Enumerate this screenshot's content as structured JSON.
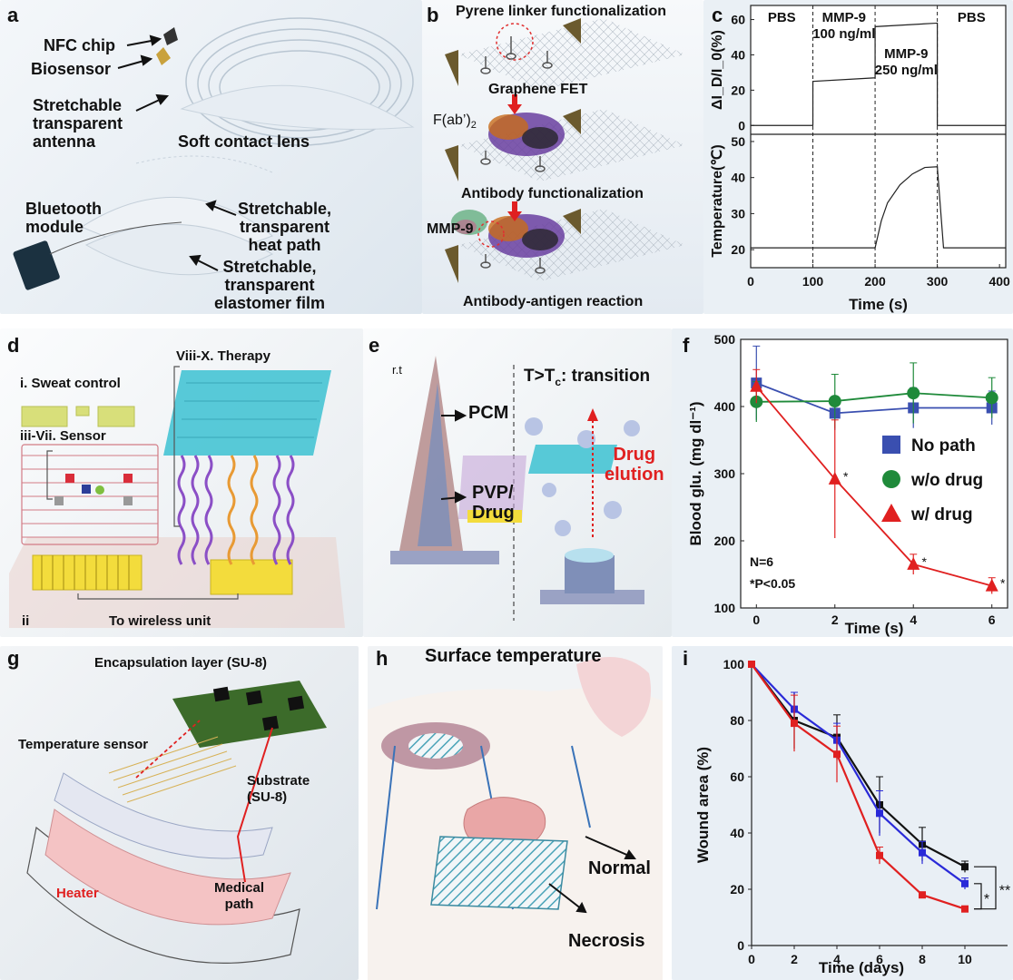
{
  "panel_labels": {
    "a": "a",
    "b": "b",
    "c": "c",
    "d": "d",
    "e": "e",
    "f": "f",
    "g": "g",
    "h": "h",
    "i": "i"
  },
  "panel_a": {
    "nfc_chip": "NFC chip",
    "biosensor": "Biosensor",
    "antenna": [
      "Stretchable",
      "transparent",
      "antenna"
    ],
    "lens": "Soft contact lens",
    "bluetooth": [
      "Bluetooth",
      "module"
    ],
    "heat_path": [
      "Stretchable,",
      "transparent",
      "heat path"
    ],
    "elastomer": [
      "Stretchable,",
      "transparent",
      "elastomer film"
    ]
  },
  "panel_b": {
    "pyrene": "Pyrene linker functionalization",
    "graphene": "Graphene FET",
    "fab": "F(ab’)",
    "fab_sub": "2",
    "antibody_func": "Antibody functionalization",
    "mmp9": "MMP-9",
    "reaction": "Antibody-antigen reaction"
  },
  "panel_d": {
    "sweat": "i. Sweat control",
    "sensor": "iii-Vii. Sensor",
    "therapy": "Viii-X. Therapy",
    "ii": "ii",
    "wireless": "To wireless unit"
  },
  "panel_e": {
    "rt": "r.t",
    "transition": "T>T",
    "transition_sub": "c",
    "transition_tail": ": transition",
    "pcm": "PCM",
    "pvp": [
      "PVP/",
      "Drug"
    ],
    "elution": [
      "Drug",
      "elution"
    ]
  },
  "panel_g": {
    "encap": "Encapsulation layer (SU-8)",
    "temp_sensor": "Temperature sensor",
    "substrate": [
      "Substrate",
      "(SU-8)"
    ],
    "heater": "Heater",
    "medical": [
      "Medical",
      "path"
    ]
  },
  "panel_h": {
    "title": "Surface temperature",
    "normal": "Normal",
    "necrosis": "Necrosis"
  },
  "chart_data": [
    {
      "id": "c-top",
      "type": "line",
      "ylabel": "ΔI_D/I_0(%)",
      "yticks": [
        0,
        20,
        40,
        60
      ],
      "ylim": [
        -5,
        68
      ],
      "xlim": [
        0,
        410
      ],
      "segments": [
        {
          "label": "PBS",
          "x": [
            0,
            100
          ],
          "y": 0
        },
        {
          "label": "MMP-9 100 ng/ml",
          "x": [
            100,
            200
          ],
          "y": [
            25,
            27
          ]
        },
        {
          "label": "MMP-9 250 ng/ml",
          "x": [
            200,
            300
          ],
          "y": [
            56,
            58
          ]
        },
        {
          "label": "PBS",
          "x": [
            300,
            410
          ],
          "y": 0
        }
      ],
      "annotations": [
        "PBS",
        "MMP-9",
        "100 ng/ml",
        "MMP-9",
        "250 ng/ml",
        "PBS"
      ]
    },
    {
      "id": "c-bottom",
      "type": "line",
      "xlabel": "Time (s)",
      "ylabel": "Temperature(℃)",
      "xticks": [
        0,
        100,
        200,
        300,
        400
      ],
      "yticks": [
        20,
        30,
        40,
        50
      ],
      "xlim": [
        0,
        410
      ],
      "ylim": [
        15,
        52
      ],
      "series": {
        "x": [
          0,
          100,
          200,
          210,
          220,
          240,
          260,
          280,
          300,
          310,
          410
        ],
        "y": [
          20.5,
          20.5,
          20.5,
          28,
          33,
          38,
          41,
          42.8,
          43,
          20.5,
          20.5
        ]
      },
      "vlines": [
        100,
        200,
        300
      ]
    },
    {
      "id": "f",
      "type": "line",
      "xlabel": "Time (s)",
      "ylabel": "Blood glu. (mg dl⁻¹)",
      "xticks": [
        0,
        2,
        4,
        6
      ],
      "yticks": [
        100,
        200,
        300,
        400,
        500
      ],
      "xlim": [
        -0.4,
        6.4
      ],
      "ylim": [
        100,
        500
      ],
      "x": [
        0,
        2,
        4,
        6
      ],
      "series": [
        {
          "name": "No path",
          "values": [
            435,
            390,
            398,
            398
          ],
          "err": [
            55,
            25,
            30,
            25
          ],
          "color": "#3a4fb0",
          "marker": "square"
        },
        {
          "name": "w/o drug",
          "values": [
            407,
            408,
            420,
            413
          ],
          "err": [
            30,
            40,
            45,
            30
          ],
          "color": "#1f8a3a",
          "marker": "circle"
        },
        {
          "name": "w/ drug",
          "values": [
            430,
            292,
            165,
            133
          ],
          "err": [
            25,
            88,
            15,
            12
          ],
          "color": "#e02020",
          "marker": "triangle"
        }
      ],
      "stars": [
        "*",
        "*",
        "*"
      ],
      "notes": [
        "N=6",
        "*P<0.05"
      ]
    },
    {
      "id": "i",
      "type": "line",
      "xlabel": "Time (days)",
      "ylabel": "Wound area (%)",
      "xticks": [
        0,
        2,
        4,
        6,
        8,
        10
      ],
      "yticks": [
        0,
        20,
        40,
        60,
        80,
        100
      ],
      "xlim": [
        0,
        12
      ],
      "ylim": [
        0,
        100
      ],
      "x": [
        0,
        2,
        4,
        6,
        8,
        10
      ],
      "series": [
        {
          "name": "black",
          "values": [
            100,
            80,
            74,
            50,
            36,
            28
          ],
          "err": [
            0,
            10,
            8,
            10,
            6,
            2
          ],
          "color": "#111111"
        },
        {
          "name": "blue",
          "values": [
            100,
            84,
            73,
            47,
            33,
            22
          ],
          "err": [
            0,
            6,
            6,
            8,
            4,
            2
          ],
          "color": "#2a2ad8"
        },
        {
          "name": "red",
          "values": [
            100,
            79,
            68,
            32,
            18,
            13
          ],
          "err": [
            0,
            10,
            10,
            3,
            1,
            1
          ],
          "color": "#e02020"
        }
      ],
      "sig": [
        "*",
        "**"
      ]
    }
  ]
}
